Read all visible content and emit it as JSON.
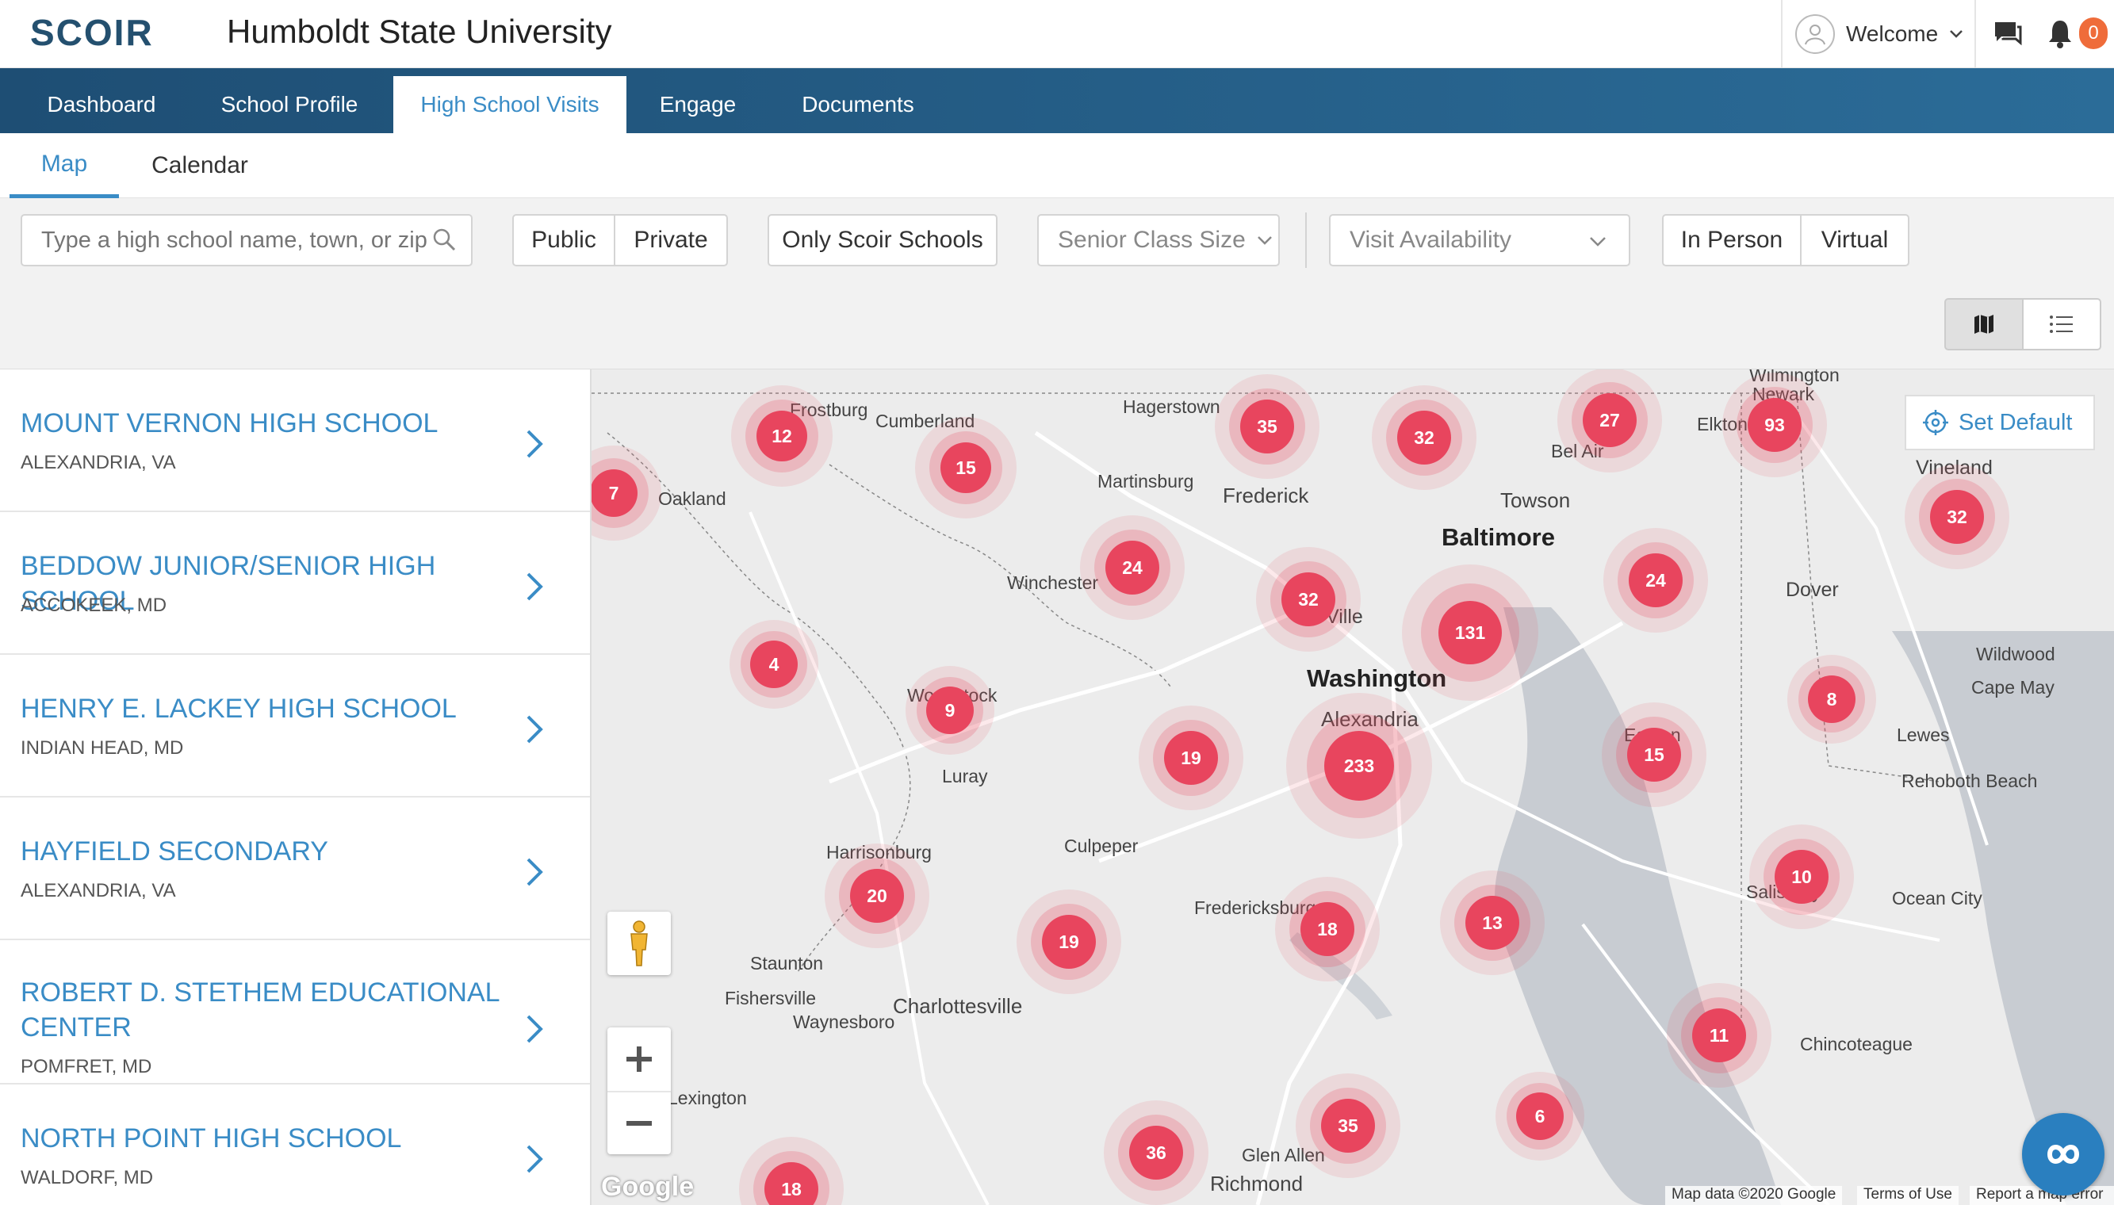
{
  "header": {
    "logo": "SCOIR",
    "school_name": "Humboldt State University",
    "welcome": "Welcome",
    "notification_count": "0"
  },
  "main_nav": {
    "tabs": [
      {
        "label": "Dashboard",
        "active": false
      },
      {
        "label": "School Profile",
        "active": false
      },
      {
        "label": "High School Visits",
        "active": true
      },
      {
        "label": "Engage",
        "active": false
      },
      {
        "label": "Documents",
        "active": false
      }
    ]
  },
  "sub_nav": {
    "tabs": [
      {
        "label": "Map",
        "active": true
      },
      {
        "label": "Calendar",
        "active": false
      }
    ]
  },
  "filters": {
    "search_placeholder": "Type a high school name, town, or zip",
    "public_label": "Public",
    "private_label": "Private",
    "only_scoir_label": "Only Scoir Schools",
    "senior_class_size": "Senior Class Size",
    "visit_availability": "Visit Availability",
    "in_person_label": "In Person",
    "virtual_label": "Virtual"
  },
  "schools": [
    {
      "name": "MOUNT VERNON HIGH SCHOOL",
      "location": "ALEXANDRIA, VA"
    },
    {
      "name": "BEDDOW JUNIOR/SENIOR HIGH SCHOOL",
      "location": "ACCOKEEK, MD"
    },
    {
      "name": "HENRY E. LACKEY HIGH SCHOOL",
      "location": "INDIAN HEAD, MD"
    },
    {
      "name": "HAYFIELD SECONDARY",
      "location": "ALEXANDRIA, VA"
    },
    {
      "name": "ROBERT D. STETHEM EDUCATIONAL CENTER",
      "location": "POMFRET, MD"
    },
    {
      "name": "NORTH POINT HIGH SCHOOL",
      "location": "WALDORF, MD"
    }
  ],
  "map": {
    "set_default_label": "Set Default",
    "google_label": "Google",
    "map_data": "Map data ©2020 Google",
    "terms": "Terms of Use",
    "report": "Report a map error",
    "cluster_counts": [
      "12",
      "15",
      "7",
      "35",
      "32",
      "27",
      "93",
      "32",
      "24",
      "32",
      "131",
      "24",
      "4",
      "9",
      "19",
      "233",
      "15",
      "8",
      "20",
      "19",
      "18",
      "13",
      "10",
      "11",
      "36",
      "35",
      "6",
      "18"
    ],
    "cities": [
      "Hagerstown",
      "Cumberland",
      "Oakland",
      "Martinsburg",
      "Frederick",
      "Towson",
      "Baltimore",
      "Bel Air",
      "Newark",
      "Elkton",
      "Vineland",
      "Winchester",
      "Washington",
      "Alexandria",
      "Dover",
      "Wildwood",
      "Cape May",
      "Luray",
      "Culpeper",
      "Harrisonburg",
      "Fredericksburg",
      "Lewes",
      "Rehoboth Beach",
      "Ocean City",
      "Staunton",
      "Fishersville",
      "Charlottesville",
      "Waynesboro",
      "Chincoteague",
      "Glen Allen",
      "Richmond",
      "Salisbury",
      "Ocean City",
      "Wilmington",
      "Ville",
      "Easton",
      "Woodstock",
      "Frostburg",
      "Lexington"
    ]
  }
}
